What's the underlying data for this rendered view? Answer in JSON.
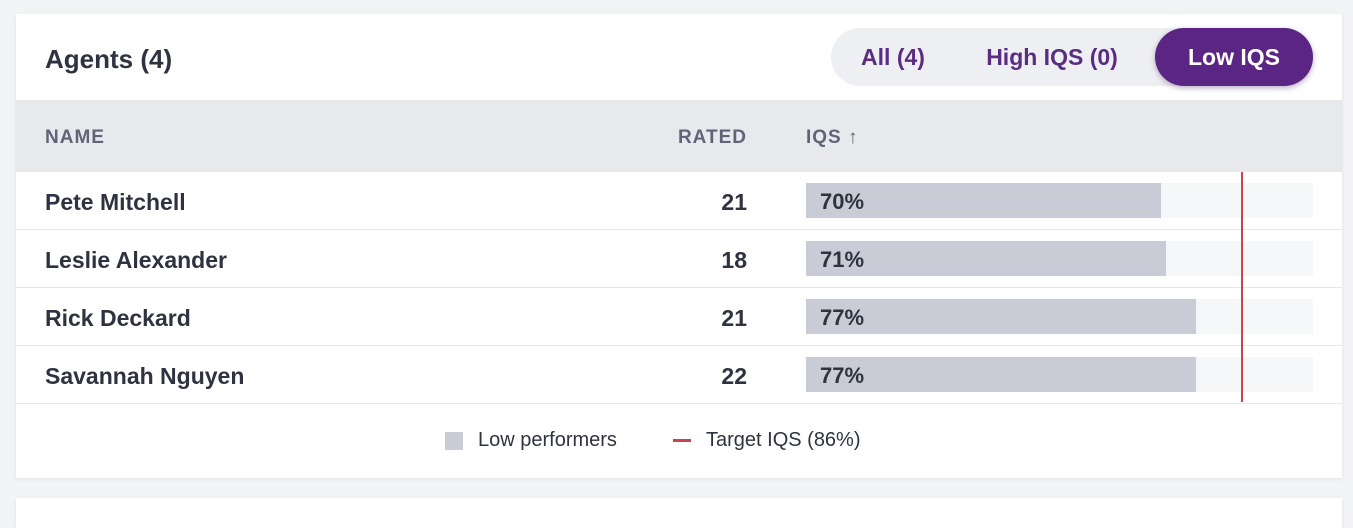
{
  "header": {
    "title": "Agents (4)",
    "filters": [
      {
        "label": "All (4)",
        "active": false
      },
      {
        "label": "High IQS (0)",
        "active": false
      },
      {
        "label": "Low IQS",
        "active": true
      }
    ]
  },
  "table": {
    "columns": {
      "name": "NAME",
      "rated": "RATED",
      "iqs": "IQS ↑"
    },
    "rows": [
      {
        "name": "Pete Mitchell",
        "rated": "21",
        "iqs_label": "70%",
        "iqs": 70
      },
      {
        "name": "Leslie Alexander",
        "rated": "18",
        "iqs_label": "71%",
        "iqs": 71
      },
      {
        "name": "Rick Deckard",
        "rated": "21",
        "iqs_label": "77%",
        "iqs": 77
      },
      {
        "name": "Savannah Nguyen",
        "rated": "22",
        "iqs_label": "77%",
        "iqs": 77
      }
    ],
    "target_iqs": 86
  },
  "legend": {
    "low_performers": "Low performers",
    "target": "Target IQS (86%)"
  },
  "colors": {
    "accent": "#5b2683",
    "bar": "#c9ccd6",
    "target": "#c8454b"
  }
}
